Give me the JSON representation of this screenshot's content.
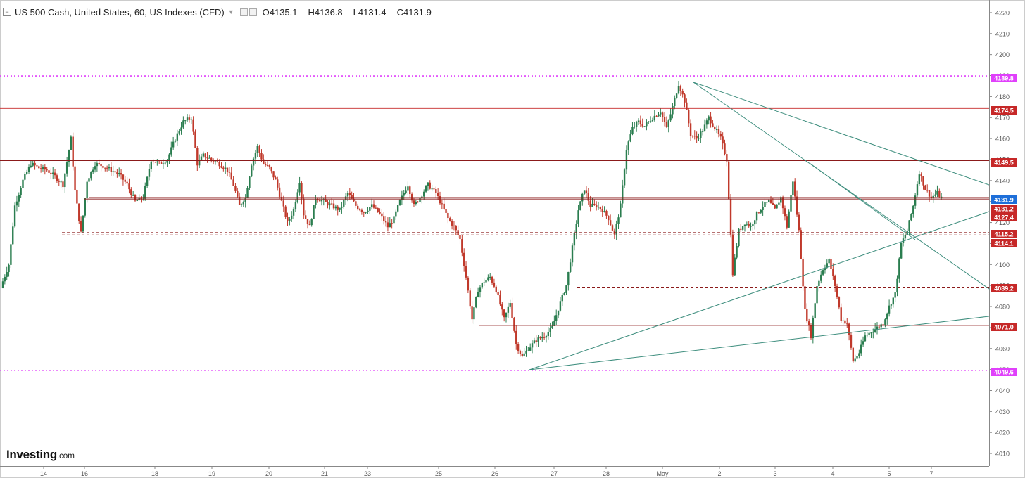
{
  "header": {
    "title": "US 500 Cash, United States, 60, US Indexes (CFD)",
    "ohlc": [
      {
        "letter": "O",
        "value": "4135.1"
      },
      {
        "letter": "H",
        "value": "4136.8"
      },
      {
        "letter": "L",
        "value": "4131.4"
      },
      {
        "letter": "C",
        "value": "4131.9"
      }
    ],
    "collapse_icon": "minus-square-icon",
    "dropdown_icon": "caret-down-icon"
  },
  "logo": {
    "text": "Investing",
    "suffix": ".com"
  },
  "colors": {
    "bull": "#2a7d4f",
    "bear": "#c0392b",
    "support_line": "#c62828",
    "pivot_line": "#e040fb",
    "trend_line": "#3e8e7e",
    "axis": "#555555",
    "bg": "#ffffff"
  },
  "chart_data": {
    "type": "candlestick",
    "title": "",
    "ylim": [
      4004,
      4226
    ],
    "y_ticks": [
      4010,
      4020,
      4030,
      4040,
      4050,
      4060,
      4070,
      4080,
      4090,
      4100,
      4110,
      4120,
      4130,
      4140,
      4150,
      4160,
      4170,
      4180,
      4190,
      4200,
      4210,
      4220
    ],
    "x_ticks": [
      "14",
      "16",
      "18",
      "19",
      "20",
      "21",
      "23",
      "25",
      "26",
      "27",
      "28",
      "May",
      "2",
      "3",
      "4",
      "5",
      "7"
    ],
    "price_levels": [
      {
        "value": 4189.8,
        "label": "4189.8",
        "style": "pivot-dotted"
      },
      {
        "value": 4174.5,
        "label": "4174.5",
        "style": "solid-thick"
      },
      {
        "value": 4149.5,
        "label": "4149.5",
        "style": "solid"
      },
      {
        "value": 4131.9,
        "label": "4131.9",
        "style": "current"
      },
      {
        "value": 4131.2,
        "label": "4131.2",
        "style": "solid"
      },
      {
        "value": 4127.4,
        "label": "4127.4",
        "style": "solid"
      },
      {
        "value": 4115.2,
        "label": "4115.2",
        "style": "dashed"
      },
      {
        "value": 4114.1,
        "label": "4114.1",
        "style": "dashed"
      },
      {
        "value": 4089.2,
        "label": "4089.2",
        "style": "dashed"
      },
      {
        "value": 4071.0,
        "label": "4071.0",
        "style": "solid"
      },
      {
        "value": 4049.6,
        "label": "4049.6",
        "style": "pivot-dotted"
      }
    ],
    "trend_lines": [
      {
        "from": [
          1.05,
          4187.0
        ],
        "to": [
          1.0,
          4138.0
        ]
      },
      {
        "from": [
          1.05,
          4187.0
        ],
        "to": [
          1.0,
          4089.0
        ]
      },
      {
        "from": [
          0.23,
          4049.6
        ],
        "to": [
          1.0,
          4124.0
        ]
      },
      {
        "from": [
          0.23,
          4049.6
        ],
        "to": [
          1.0,
          4076.0
        ]
      }
    ],
    "anchors": [
      [
        0,
        4092
      ],
      [
        3,
        4100
      ],
      [
        6,
        4128
      ],
      [
        10,
        4140
      ],
      [
        14,
        4148
      ],
      [
        18,
        4146
      ],
      [
        22,
        4145
      ],
      [
        26,
        4142
      ],
      [
        30,
        4138
      ],
      [
        34,
        4160
      ],
      [
        36,
        4135
      ],
      [
        39,
        4115
      ],
      [
        42,
        4140
      ],
      [
        46,
        4148
      ],
      [
        50,
        4147
      ],
      [
        54,
        4145
      ],
      [
        58,
        4143
      ],
      [
        62,
        4138
      ],
      [
        66,
        4130
      ],
      [
        70,
        4132
      ],
      [
        74,
        4150
      ],
      [
        78,
        4148
      ],
      [
        82,
        4150
      ],
      [
        86,
        4160
      ],
      [
        90,
        4168
      ],
      [
        94,
        4170
      ],
      [
        97,
        4148
      ],
      [
        100,
        4152
      ],
      [
        104,
        4150
      ],
      [
        108,
        4148
      ],
      [
        112,
        4145
      ],
      [
        115,
        4138
      ],
      [
        118,
        4128
      ],
      [
        121,
        4132
      ],
      [
        124,
        4148
      ],
      [
        127,
        4156
      ],
      [
        130,
        4148
      ],
      [
        133,
        4146
      ],
      [
        136,
        4140
      ],
      [
        139,
        4130
      ],
      [
        142,
        4120
      ],
      [
        145,
        4126
      ],
      [
        148,
        4140
      ],
      [
        150,
        4124
      ],
      [
        153,
        4118
      ],
      [
        156,
        4132
      ],
      [
        160,
        4130
      ],
      [
        164,
        4128
      ],
      [
        168,
        4126
      ],
      [
        172,
        4134
      ],
      [
        176,
        4128
      ],
      [
        180,
        4125
      ],
      [
        184,
        4128
      ],
      [
        188,
        4124
      ],
      [
        192,
        4118
      ],
      [
        195,
        4122
      ],
      [
        198,
        4130
      ],
      [
        202,
        4138
      ],
      [
        205,
        4128
      ],
      [
        208,
        4132
      ],
      [
        212,
        4138
      ],
      [
        216,
        4134
      ],
      [
        219,
        4128
      ],
      [
        222,
        4122
      ],
      [
        225,
        4118
      ],
      [
        228,
        4112
      ],
      [
        231,
        4094
      ],
      [
        234,
        4074
      ],
      [
        237,
        4088
      ],
      [
        240,
        4092
      ],
      [
        243,
        4094
      ],
      [
        246,
        4088
      ],
      [
        250,
        4074
      ],
      [
        253,
        4082
      ],
      [
        256,
        4062
      ],
      [
        259,
        4056
      ],
      [
        262,
        4060
      ],
      [
        266,
        4064
      ],
      [
        270,
        4066
      ],
      [
        274,
        4070
      ],
      [
        278,
        4082
      ],
      [
        281,
        4090
      ],
      [
        284,
        4108
      ],
      [
        287,
        4126
      ],
      [
        290,
        4136
      ],
      [
        293,
        4128
      ],
      [
        296,
        4128
      ],
      [
        299,
        4126
      ],
      [
        302,
        4122
      ],
      [
        305,
        4114
      ],
      [
        308,
        4128
      ],
      [
        311,
        4155
      ],
      [
        314,
        4165
      ],
      [
        317,
        4168
      ],
      [
        320,
        4166
      ],
      [
        324,
        4170
      ],
      [
        328,
        4173
      ],
      [
        331,
        4165
      ],
      [
        334,
        4175
      ],
      [
        337,
        4186
      ],
      [
        340,
        4178
      ],
      [
        343,
        4162
      ],
      [
        346,
        4160
      ],
      [
        349,
        4164
      ],
      [
        352,
        4170
      ],
      [
        355,
        4165
      ],
      [
        358,
        4160
      ],
      [
        361,
        4150
      ],
      [
        364,
        4096
      ],
      [
        367,
        4116
      ],
      [
        370,
        4120
      ],
      [
        373,
        4118
      ],
      [
        376,
        4124
      ],
      [
        379,
        4128
      ],
      [
        382,
        4130
      ],
      [
        385,
        4126
      ],
      [
        388,
        4132
      ],
      [
        391,
        4118
      ],
      [
        394,
        4140
      ],
      [
        397,
        4116
      ],
      [
        400,
        4078
      ],
      [
        403,
        4066
      ],
      [
        406,
        4090
      ],
      [
        409,
        4098
      ],
      [
        412,
        4102
      ],
      [
        415,
        4090
      ],
      [
        418,
        4074
      ],
      [
        421,
        4072
      ],
      [
        424,
        4054
      ],
      [
        427,
        4058
      ],
      [
        430,
        4066
      ],
      [
        433,
        4068
      ],
      [
        436,
        4070
      ],
      [
        439,
        4072
      ],
      [
        442,
        4080
      ],
      [
        445,
        4086
      ],
      [
        448,
        4110
      ],
      [
        451,
        4116
      ],
      [
        454,
        4128
      ],
      [
        457,
        4144
      ],
      [
        460,
        4136
      ],
      [
        463,
        4132
      ],
      [
        466,
        4134
      ],
      [
        468,
        4131.9
      ]
    ]
  }
}
